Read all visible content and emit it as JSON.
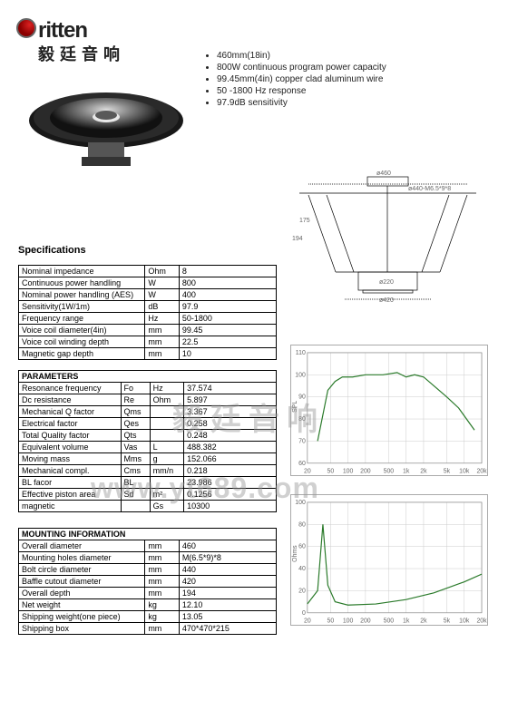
{
  "brand": {
    "name": "ritten",
    "sub": "毅廷音响"
  },
  "bullets": [
    "460mm(18in)",
    "800W continuous program power capacity",
    "99.45mm(4in) copper clad aluminum wire",
    "50 -1800 Hz response",
    "97.9dB sensitivity"
  ],
  "spec_title": "Specifications",
  "tbl1": [
    [
      "Nominal impedance",
      "Ohm",
      "8"
    ],
    [
      "Continuous power handling",
      "W",
      "800"
    ],
    [
      "Nominal power handling (AES)",
      "W",
      "400"
    ],
    [
      "Sensitivity(1W/1m)",
      "dB",
      "97.9"
    ],
    [
      "Frequency range",
      "Hz",
      "50-1800"
    ],
    [
      "Voice coil diameter(4in)",
      "mm",
      "99.45"
    ],
    [
      "Voice coil winding depth",
      "mm",
      "22.5"
    ],
    [
      "Magnetic gap depth",
      "mm",
      "10"
    ]
  ],
  "tbl2_head": "PARAMETERS",
  "tbl2": [
    [
      "Resonance frequency",
      "Fo",
      "Hz",
      "37.574"
    ],
    [
      "Dc resistance",
      "Re",
      "Ohm",
      "5.897"
    ],
    [
      "Mechanical Q factor",
      "Qms",
      "",
      "3.367"
    ],
    [
      "Electrical factor",
      "Qes",
      "",
      "0.258"
    ],
    [
      "Total Quality factor",
      "Qts",
      "",
      "0.248"
    ],
    [
      "Equivalent volume",
      "Vas",
      "L",
      "488.382"
    ],
    [
      "Moving mass",
      "Mms",
      "g",
      "152.066"
    ],
    [
      "Mechanical compl.",
      "Cms",
      "mm/n",
      "0.218"
    ],
    [
      "BL facor",
      "BL",
      "",
      "23.986"
    ],
    [
      "Effective piston area",
      "Sd",
      "m²",
      "0.1256"
    ],
    [
      "magnetic",
      "",
      "Gs",
      "10300"
    ]
  ],
  "tbl3_head": "MOUNTING INFORMATION",
  "tbl3": [
    [
      "Overall diameter",
      "mm",
      "460"
    ],
    [
      "Mounting holes diameter",
      "mm",
      "M(6.5*9)*8"
    ],
    [
      "Bolt circle diameter",
      "mm",
      "440"
    ],
    [
      "Baffle cutout diameter",
      "mm",
      "420"
    ],
    [
      "Overall depth",
      "mm",
      "194"
    ],
    [
      "Net weight",
      "kg",
      "12.10"
    ],
    [
      "Shipping weight(one piece)",
      "kg",
      "13.05"
    ],
    [
      "Shipping box",
      "mm",
      "470*470*215"
    ]
  ],
  "diagram": {
    "labels": [
      "ø460",
      "ø440-M6.5*9*8",
      "ø220",
      "ø420",
      "194",
      "175"
    ]
  },
  "chart1": {
    "type": "frequency-response",
    "line_color": "#2a7a2a",
    "grid_color": "#ccc",
    "bg": "#fff",
    "xlog": true,
    "xmin": 20,
    "xmax": 20000,
    "ymin": 60,
    "ymax": 110,
    "label": "SPL",
    "points": [
      [
        30,
        70
      ],
      [
        45,
        93
      ],
      [
        60,
        97
      ],
      [
        80,
        99
      ],
      [
        120,
        99
      ],
      [
        200,
        100
      ],
      [
        400,
        100
      ],
      [
        700,
        101
      ],
      [
        1000,
        99
      ],
      [
        1400,
        100
      ],
      [
        2000,
        99
      ],
      [
        3000,
        95
      ],
      [
        5000,
        90
      ],
      [
        8000,
        85
      ],
      [
        15000,
        75
      ]
    ]
  },
  "chart2": {
    "type": "impedance",
    "line_color": "#2a7a2a",
    "grid_color": "#ccc",
    "bg": "#fff",
    "xlog": true,
    "xmin": 20,
    "xmax": 20000,
    "ymin": 0,
    "ymax": 100,
    "label": "Ohms",
    "points": [
      [
        20,
        8
      ],
      [
        30,
        20
      ],
      [
        37,
        80
      ],
      [
        45,
        25
      ],
      [
        60,
        10
      ],
      [
        100,
        7
      ],
      [
        300,
        8
      ],
      [
        1000,
        12
      ],
      [
        3000,
        18
      ],
      [
        10000,
        28
      ],
      [
        20000,
        35
      ]
    ]
  },
  "watermark": {
    "line1": "毅廷音响",
    "line2": "www.yt689.com"
  }
}
